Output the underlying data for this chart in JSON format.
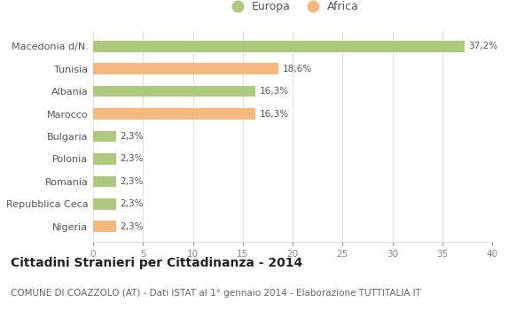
{
  "categories": [
    "Nigeria",
    "Repubblica Ceca",
    "Romania",
    "Polonia",
    "Bulgaria",
    "Marocco",
    "Albania",
    "Tunisia",
    "Macedonia d/N."
  ],
  "values": [
    2.3,
    2.3,
    2.3,
    2.3,
    2.3,
    16.3,
    16.3,
    18.6,
    37.2
  ],
  "labels": [
    "2,3%",
    "2,3%",
    "2,3%",
    "2,3%",
    "2,3%",
    "16,3%",
    "16,3%",
    "18,6%",
    "37,2%"
  ],
  "colors": [
    "#f5b97f",
    "#adc97e",
    "#adc97e",
    "#adc97e",
    "#adc97e",
    "#f5b97f",
    "#adc97e",
    "#f5b97f",
    "#adc97e"
  ],
  "europa_color": "#adc97e",
  "africa_color": "#f5b97f",
  "xlim": [
    0,
    40
  ],
  "xticks": [
    0,
    5,
    10,
    15,
    20,
    25,
    30,
    35,
    40
  ],
  "background_color": "#ffffff",
  "grid_color": "#dddddd",
  "bar_height": 0.5,
  "label_fontsize": 7.5,
  "title": "Cittadini Stranieri per Cittadinanza - 2014",
  "subtitle": "COMUNE DI COAZZOLO (AT) - Dati ISTAT al 1° gennaio 2014 - Elaborazione TUTTITALIA.IT",
  "title_fontsize": 10,
  "subtitle_fontsize": 7.5,
  "ytick_fontsize": 8,
  "xtick_fontsize": 7.5
}
